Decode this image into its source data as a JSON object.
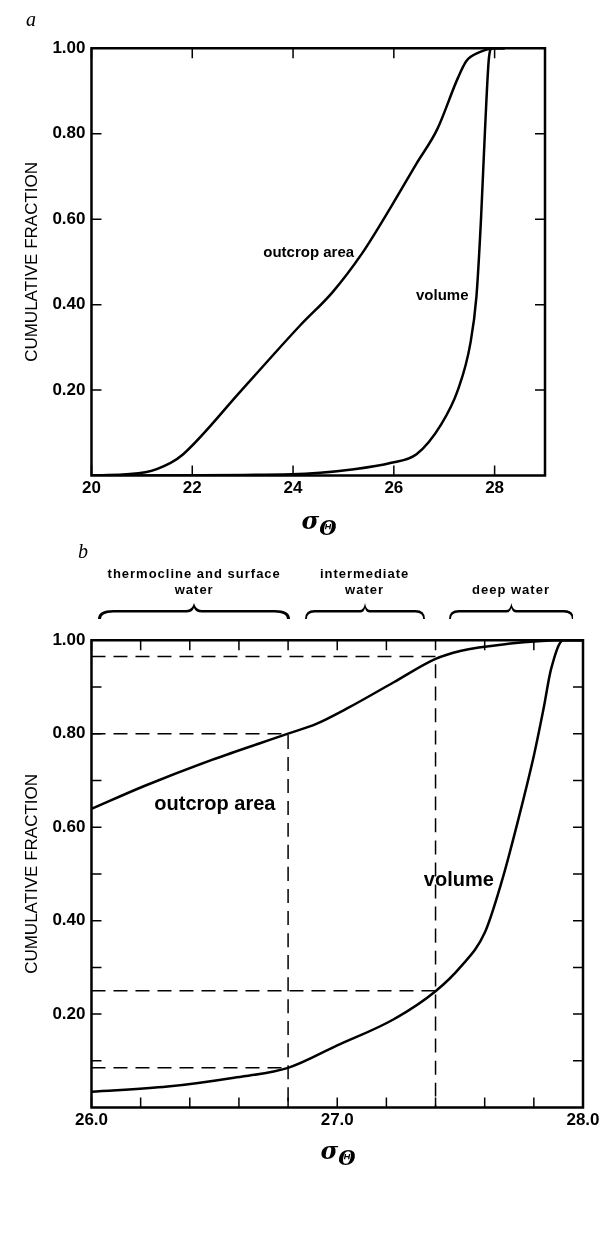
{
  "chart_data": [
    {
      "type": "line",
      "title": "a",
      "xlabel": "σ$_{Θ}$",
      "ylabel": "CUMULATIVE FRACTION",
      "xlim": [
        20,
        29
      ],
      "ylim": [
        0,
        1
      ],
      "xticks": [
        20,
        22,
        24,
        26,
        28
      ],
      "yticks": [
        {
          "value": 0.2,
          "label": "0.20"
        },
        {
          "value": 0.4,
          "label": "0.40"
        },
        {
          "value": 0.6,
          "label": "0.60"
        },
        {
          "value": 0.8,
          "label": "0.80"
        },
        {
          "value": 1,
          "label": "1.00"
        }
      ],
      "marker": "none",
      "line_style": "solid",
      "series": [
        {
          "name": "outcrop area",
          "color": "#000000",
          "x": [
            20,
            21.07,
            21.57,
            21.82,
            22.98,
            24.13,
            24.79,
            25.37,
            25.95,
            26.45,
            26.86,
            27.27,
            27.44,
            27.69,
            28.02,
            28.2
          ],
          "values": [
            0,
            0.008,
            0.03,
            0.05,
            0.2,
            0.35,
            0.43,
            0.52,
            0.63,
            0.73,
            0.81,
            0.93,
            0.97,
            0.99,
            1,
            1
          ]
        },
        {
          "name": "volume",
          "color": "#000000",
          "x": [
            20,
            23.97,
            25.21,
            25.95,
            26.45,
            26.94,
            27.27,
            27.52,
            27.64,
            27.73,
            27.81,
            27.89,
            27.95,
            28.2
          ],
          "values": [
            0,
            0.003,
            0.015,
            0.03,
            0.05,
            0.12,
            0.2,
            0.31,
            0.42,
            0.6,
            0.81,
            0.98,
            1,
            1
          ]
        }
      ]
    },
    {
      "type": "line",
      "title": "b",
      "xlabel": "σ$_{Θ}$",
      "ylabel": "CUMULATIVE FRACTION",
      "xlim": [
        26,
        28
      ],
      "ylim": [
        0,
        1
      ],
      "xticks": [
        {
          "value": 26,
          "label": "26.0"
        },
        {
          "value": 26.2,
          "label": null
        },
        {
          "value": 26.4,
          "label": null
        },
        {
          "value": 26.6,
          "label": null
        },
        {
          "value": 26.8,
          "label": null
        },
        {
          "value": 27,
          "label": "27.0"
        },
        {
          "value": 27.2,
          "label": null
        },
        {
          "value": 27.4,
          "label": null
        },
        {
          "value": 27.6,
          "label": null
        },
        {
          "value": 27.8,
          "label": null
        },
        {
          "value": 28,
          "label": "28.0"
        }
      ],
      "yticks": [
        {
          "value": 0.1,
          "label": null
        },
        {
          "value": 0.2,
          "label": "0.20"
        },
        {
          "value": 0.3,
          "label": null
        },
        {
          "value": 0.4,
          "label": "0.40"
        },
        {
          "value": 0.5,
          "label": null
        },
        {
          "value": 0.6,
          "label": "0.60"
        },
        {
          "value": 0.7,
          "label": null
        },
        {
          "value": 0.8,
          "label": "0.80"
        },
        {
          "value": 0.9,
          "label": null
        },
        {
          "value": 1,
          "label": "1.00"
        }
      ],
      "marker": "none",
      "line_style": "solid",
      "annotations": [
        "thermocline and surface water",
        "intermediate water",
        "deep water"
      ],
      "series": [
        {
          "name": "outcrop area",
          "color": "#000000",
          "x": [
            26,
            26.215,
            26.49,
            26.8,
            26.915,
            27.04,
            27.23,
            27.4,
            27.5,
            27.69,
            27.91,
            28
          ],
          "values": [
            0.639,
            0.688,
            0.744,
            0.8,
            0.821,
            0.854,
            0.91,
            0.96,
            0.977,
            0.992,
            1,
            1
          ]
        },
        {
          "name": "volume",
          "color": "#000000",
          "x": [
            26,
            26.31,
            26.58,
            26.8,
            27,
            27.23,
            27.4,
            27.5,
            27.6,
            27.67,
            27.74,
            27.8,
            27.84,
            27.87,
            27.92,
            28
          ],
          "values": [
            0.034,
            0.045,
            0.064,
            0.085,
            0.133,
            0.189,
            0.249,
            0.3,
            0.374,
            0.485,
            0.623,
            0.753,
            0.855,
            0.938,
            1,
            1
          ]
        },
        {
          "color": "#000000",
          "line_style": "dashed",
          "x": [
            26,
            26.8,
            26.8
          ],
          "values": [
            0.8,
            0.8,
            0
          ]
        },
        {
          "color": "#000000",
          "line_style": "dashed",
          "x": [
            26,
            26.8
          ],
          "values": [
            0.085,
            0.085
          ]
        },
        {
          "color": "#000000",
          "line_style": "dashed",
          "x": [
            26,
            27.4,
            27.4
          ],
          "values": [
            0.965,
            0.965,
            0
          ]
        },
        {
          "color": "#000000",
          "line_style": "dashed",
          "x": [
            26,
            27.4
          ],
          "values": [
            0.25,
            0.25
          ]
        }
      ]
    }
  ]
}
